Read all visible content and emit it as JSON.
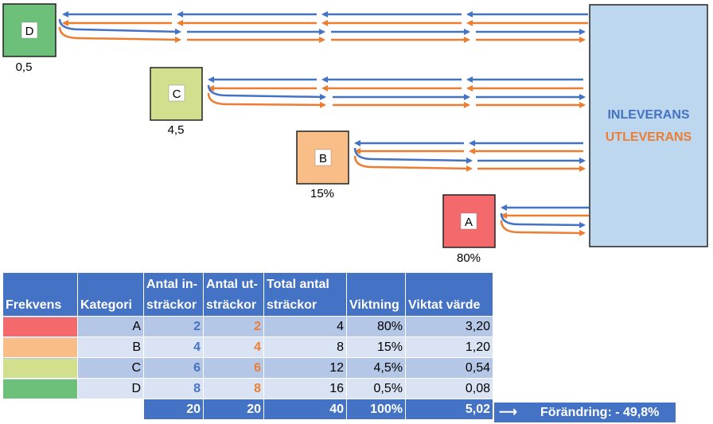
{
  "hub": {
    "line1": "INLEVERANS",
    "line2": "UTLEVERANS"
  },
  "colors": {
    "inbound": "#4472c4",
    "outbound": "#ed7d31",
    "hub_fill": "#bdd7ee",
    "A": "#f4696b",
    "B": "#f9be87",
    "C": "#d2e08d",
    "D": "#6cc07a"
  },
  "boxes": [
    {
      "label": "A",
      "freq": "80%"
    },
    {
      "label": "B",
      "freq": "15%"
    },
    {
      "label": "C",
      "freq": "4,5"
    },
    {
      "label": "D",
      "freq": "0,5"
    }
  ],
  "table": {
    "headers": [
      "Frekvens",
      "Kategori",
      "Antal in-sträckor",
      "Antal ut-sträckor",
      "Total antal sträckor",
      "Viktning",
      "Viktat värde"
    ],
    "rows": [
      {
        "kategori": "A",
        "in": "2",
        "ut": "2",
        "total": "4",
        "viktning": "80%",
        "viktat": "3,20"
      },
      {
        "kategori": "B",
        "in": "4",
        "ut": "4",
        "total": "8",
        "viktning": "15%",
        "viktat": "1,20"
      },
      {
        "kategori": "C",
        "in": "6",
        "ut": "6",
        "total": "12",
        "viktning": "4,5%",
        "viktat": "0,54"
      },
      {
        "kategori": "D",
        "in": "8",
        "ut": "8",
        "total": "16",
        "viktning": "0,5%",
        "viktat": "0,08"
      }
    ],
    "totals": {
      "in": "20",
      "ut": "20",
      "total": "40",
      "viktning": "100%",
      "viktat": "5,02"
    }
  },
  "change": {
    "arrow": "⟶",
    "text": "Förändring: - 49,8%"
  }
}
